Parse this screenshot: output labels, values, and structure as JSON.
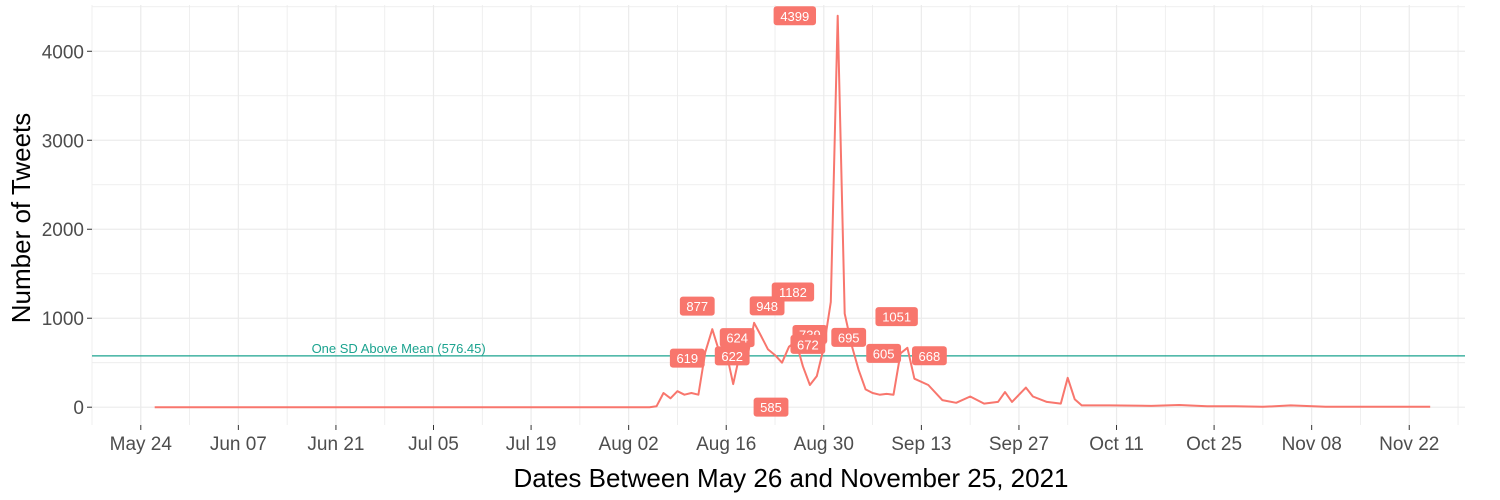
{
  "chart_data": {
    "type": "line",
    "title": "",
    "xlabel": "Dates Between May 26 and November 25, 2021",
    "ylabel": "Number of Tweets",
    "xlim": [
      "2021-05-17",
      "2021-11-30"
    ],
    "ylim": [
      -200,
      4520
    ],
    "x_ticks": [
      {
        "date": "2021-05-24",
        "label": "May 24"
      },
      {
        "date": "2021-06-07",
        "label": "Jun 07"
      },
      {
        "date": "2021-06-21",
        "label": "Jun 21"
      },
      {
        "date": "2021-07-05",
        "label": "Jul 05"
      },
      {
        "date": "2021-07-19",
        "label": "Jul 19"
      },
      {
        "date": "2021-08-02",
        "label": "Aug 02"
      },
      {
        "date": "2021-08-16",
        "label": "Aug 16"
      },
      {
        "date": "2021-08-30",
        "label": "Aug 30"
      },
      {
        "date": "2021-09-13",
        "label": "Sep 13"
      },
      {
        "date": "2021-09-27",
        "label": "Sep 27"
      },
      {
        "date": "2021-10-11",
        "label": "Oct 11"
      },
      {
        "date": "2021-10-25",
        "label": "Oct 25"
      },
      {
        "date": "2021-11-08",
        "label": "Nov 08"
      },
      {
        "date": "2021-11-22",
        "label": "Nov 22"
      }
    ],
    "y_ticks": [
      0,
      1000,
      2000,
      3000,
      4000
    ],
    "grid": true,
    "colors": {
      "line": "#f8766d",
      "reference": "#1ba38f",
      "label_fill": "#f8766d",
      "grid": "#ebebeb"
    },
    "series": [
      {
        "x": [
          "2021-05-26",
          "2021-06-10",
          "2021-06-25",
          "2021-07-10",
          "2021-07-25",
          "2021-08-05",
          "2021-08-06",
          "2021-08-07",
          "2021-08-08",
          "2021-08-09",
          "2021-08-10",
          "2021-08-11",
          "2021-08-12",
          "2021-08-13",
          "2021-08-14",
          "2021-08-15",
          "2021-08-16",
          "2021-08-17",
          "2021-08-18",
          "2021-08-19",
          "2021-08-20",
          "2021-08-21",
          "2021-08-22",
          "2021-08-23",
          "2021-08-24",
          "2021-08-25",
          "2021-08-26",
          "2021-08-27",
          "2021-08-28",
          "2021-08-29",
          "2021-08-30",
          "2021-08-31",
          "2021-09-01",
          "2021-09-02",
          "2021-09-03",
          "2021-09-04",
          "2021-09-05",
          "2021-09-06",
          "2021-09-07",
          "2021-09-08",
          "2021-09-09",
          "2021-09-10",
          "2021-09-11",
          "2021-09-12",
          "2021-09-14",
          "2021-09-16",
          "2021-09-18",
          "2021-09-20",
          "2021-09-22",
          "2021-09-24",
          "2021-09-25",
          "2021-09-26",
          "2021-09-28",
          "2021-09-29",
          "2021-10-01",
          "2021-10-03",
          "2021-10-04",
          "2021-10-05",
          "2021-10-06",
          "2021-10-10",
          "2021-10-16",
          "2021-10-20",
          "2021-10-24",
          "2021-10-28",
          "2021-11-01",
          "2021-11-05",
          "2021-11-10",
          "2021-11-20",
          "2021-11-25"
        ],
        "y": [
          0,
          0,
          0,
          0,
          0,
          0,
          10,
          160,
          100,
          180,
          140,
          160,
          140,
          619,
          877,
          622,
          624,
          260,
          622,
          550,
          948,
          800,
          650,
          585,
          500,
          680,
          739,
          460,
          250,
          350,
          672,
          1182,
          4399,
          1051,
          695,
          420,
          200,
          160,
          140,
          150,
          140,
          605,
          668,
          320,
          250,
          80,
          50,
          120,
          40,
          60,
          170,
          60,
          220,
          120,
          60,
          40,
          330,
          90,
          20,
          20,
          15,
          25,
          10,
          10,
          5,
          20,
          5,
          5,
          5
        ]
      }
    ],
    "reference_line": {
      "value": 576.45,
      "label": "One SD Above Mean (576.45)"
    },
    "data_labels": [
      {
        "date": "2021-08-14",
        "value": 619,
        "text": "619"
      },
      {
        "date": "2021-08-15",
        "value": 877,
        "text": "877"
      },
      {
        "date": "2021-08-17",
        "value": 622,
        "text": "622"
      },
      {
        "date": "2021-08-18",
        "value": 624,
        "text": "624"
      },
      {
        "date": "2021-08-20",
        "value": 948,
        "text": "948"
      },
      {
        "date": "2021-08-23",
        "value": 585,
        "text": "585"
      },
      {
        "date": "2021-08-26",
        "value": 1182,
        "text": "1182"
      },
      {
        "date": "2021-08-28",
        "value": 739,
        "text": "739"
      },
      {
        "date": "2021-08-28",
        "value": 672,
        "text": "672"
      },
      {
        "date": "2021-08-30",
        "value": 4399,
        "text": "4399"
      },
      {
        "date": "2021-09-02",
        "value": 695,
        "text": "695"
      },
      {
        "date": "2021-09-04",
        "value": 1051,
        "text": "1051"
      },
      {
        "date": "2021-09-04",
        "value": 605,
        "text": "605"
      },
      {
        "date": "2021-09-12",
        "value": 668,
        "text": "668"
      }
    ]
  }
}
